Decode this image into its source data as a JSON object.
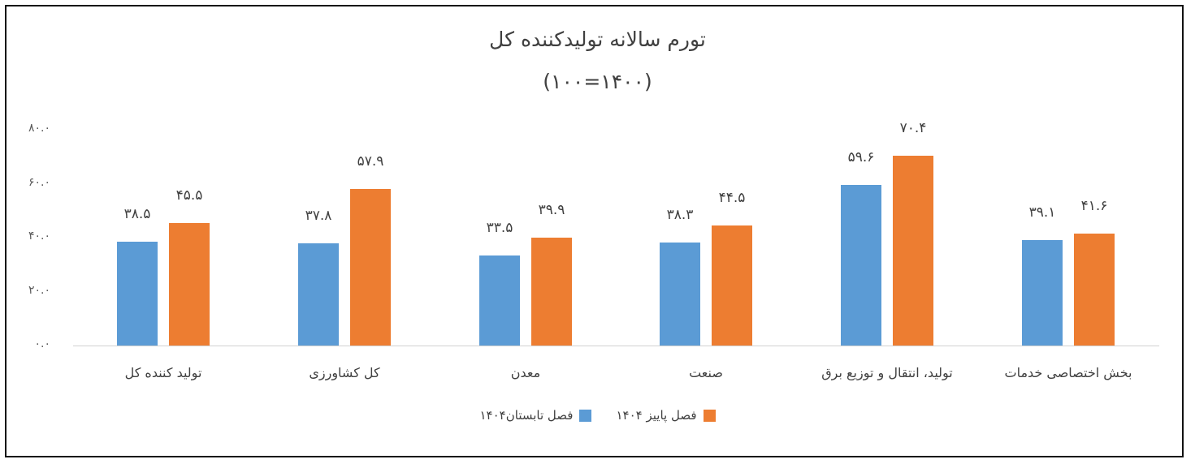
{
  "chart_data": {
    "type": "bar",
    "title": "تورم سالانه تولیدکننده کل",
    "subtitle": "(۱۴۰۰=۱۰۰)",
    "categories": [
      "تولید کننده کل",
      "کل کشاورزی",
      "معدن",
      "صنعت",
      "تولید، انتقال و توزیع برق",
      "بخش اختصاصی خدمات"
    ],
    "series": [
      {
        "name": "فصل تابستان۱۴۰۴",
        "color": "#5b9bd5",
        "values": [
          38.5,
          37.8,
          33.5,
          38.3,
          59.6,
          39.1
        ],
        "labels": [
          "۳۸.۵",
          "۳۷.۸",
          "۳۳.۵",
          "۳۸.۳",
          "۵۹.۶",
          "۳۹.۱"
        ]
      },
      {
        "name": "فصل پاییز ۱۴۰۴",
        "color": "#ed7d31",
        "values": [
          45.5,
          57.9,
          39.9,
          44.5,
          70.4,
          41.6
        ],
        "labels": [
          "۴۵.۵",
          "۵۷.۹",
          "۳۹.۹",
          "۴۴.۵",
          "۷۰.۴",
          "۴۱.۶"
        ]
      }
    ],
    "yticks": [
      0,
      20,
      40,
      60,
      80
    ],
    "ytick_labels": [
      "۰.۰",
      "۲۰.۰",
      "۴۰.۰",
      "۶۰.۰",
      "۸۰.۰"
    ],
    "xlabel": "",
    "ylabel": "",
    "ylim": [
      0,
      80
    ],
    "grid": false,
    "legend_position": "bottom"
  }
}
